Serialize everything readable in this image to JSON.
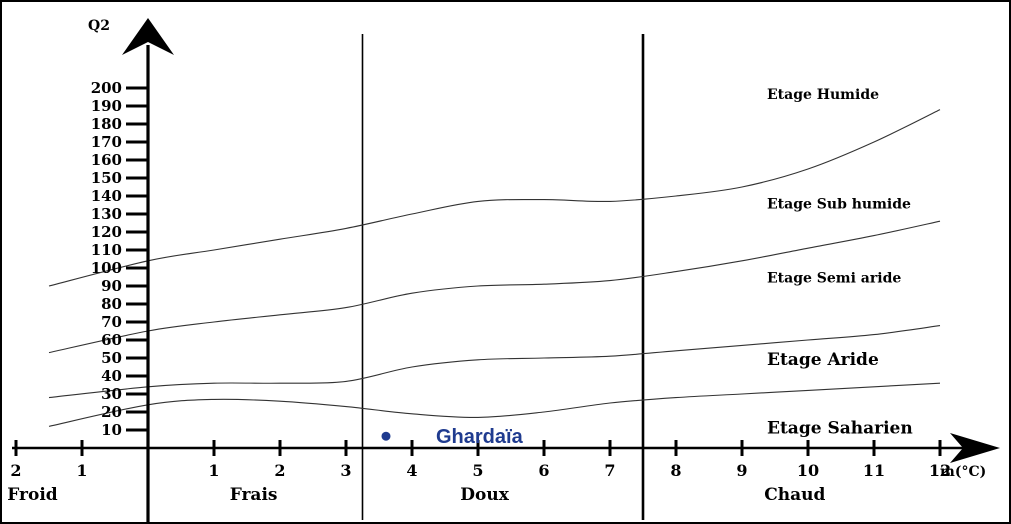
{
  "chart_data": {
    "type": "line",
    "ylabel": "Q2",
    "xlabel": "m(°C)",
    "ylim": [
      0,
      200
    ],
    "xlim": [
      -2,
      12
    ],
    "y_ticks": [
      "10",
      "20",
      "30",
      "40",
      "50",
      "60",
      "70",
      "80",
      "90",
      "100",
      "110",
      "120",
      "130",
      "140",
      "150",
      "160",
      "170",
      "180",
      "190",
      "200"
    ],
    "x_tick_labels": [
      {
        "value": -2,
        "label": "2"
      },
      {
        "value": -1,
        "label": "1"
      },
      {
        "value": 1,
        "label": "1"
      },
      {
        "value": 2,
        "label": "2"
      },
      {
        "value": 3,
        "label": "3"
      },
      {
        "value": 4,
        "label": "4"
      },
      {
        "value": 5,
        "label": "5"
      },
      {
        "value": 6,
        "label": "6"
      },
      {
        "value": 7,
        "label": "7"
      },
      {
        "value": 8,
        "label": "8"
      },
      {
        "value": 9,
        "label": "9"
      },
      {
        "value": 10,
        "label": "10"
      },
      {
        "value": 11,
        "label": "11"
      },
      {
        "value": 12,
        "label": "12"
      }
    ],
    "dividers": [
      3.25,
      7.5
    ],
    "zones": [
      {
        "label": "Froid",
        "x": -1.75
      },
      {
        "label": "Frais",
        "x": 1.6
      },
      {
        "label": "Doux",
        "x": 5.1
      },
      {
        "label": "Chaud",
        "x": 9.8
      }
    ],
    "boundaries": [
      {
        "x": [
          -1.5,
          0,
          1,
          2,
          3,
          4,
          5,
          6,
          7,
          8,
          9,
          10,
          11,
          12
        ],
        "y": [
          90,
          104,
          110,
          116,
          122,
          130,
          137,
          138,
          137,
          140,
          145,
          155,
          170,
          188
        ]
      },
      {
        "x": [
          -1.5,
          0,
          1,
          2,
          3,
          4,
          5,
          6,
          7,
          8,
          9,
          10,
          11,
          12
        ],
        "y": [
          53,
          65,
          70,
          74,
          78,
          86,
          90,
          91,
          93,
          98,
          104,
          111,
          118,
          126
        ]
      },
      {
        "x": [
          -1.5,
          0,
          1,
          2,
          3,
          4,
          5,
          6,
          7,
          8,
          9,
          10,
          11,
          12
        ],
        "y": [
          28,
          34,
          36,
          36,
          37,
          45,
          49,
          50,
          51,
          54,
          57,
          60,
          63,
          68
        ]
      },
      {
        "x": [
          -1.5,
          0,
          1,
          2,
          3,
          4,
          5,
          6,
          7,
          8,
          9,
          10,
          11,
          12
        ],
        "y": [
          12,
          24,
          27,
          26,
          23,
          19,
          17,
          20,
          25,
          28,
          30,
          32,
          34,
          36
        ]
      }
    ],
    "stage_labels": [
      {
        "label": "Etage Humide",
        "y": 194
      },
      {
        "label": "Etage Sub humide",
        "y": 133
      },
      {
        "label": "Etage Semi aride",
        "y": 92
      },
      {
        "label": "Etage Aride",
        "y": 46
      },
      {
        "label": "Etage Saharien",
        "y": 8
      }
    ],
    "points": [
      {
        "name": "Ghardaïa",
        "x": 3.5,
        "y": 1,
        "color": "#1f3b8f"
      }
    ],
    "colors": {
      "lines": "#000000",
      "point": "#1f3b8f"
    }
  }
}
